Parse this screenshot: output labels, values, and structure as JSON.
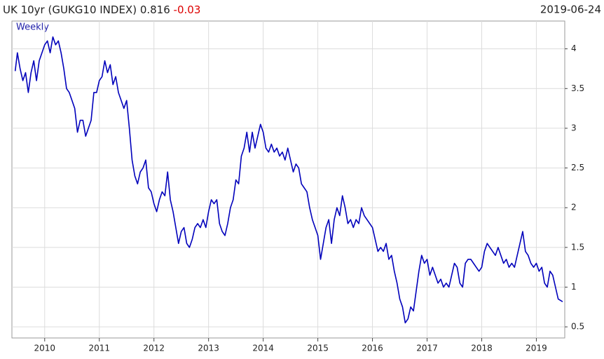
{
  "chart_data": {
    "type": "line",
    "title": "UK 10yr (GUKG10 INDEX) 0.816",
    "change": "-0.03",
    "date": "2019-06-24",
    "annotation": "Weekly",
    "xlim": [
      2009.4,
      2019.52
    ],
    "xticks": [
      2010,
      2011,
      2012,
      2013,
      2014,
      2015,
      2016,
      2017,
      2018,
      2019
    ],
    "ylim": [
      0.36,
      4.35
    ],
    "yticks": [
      0.5,
      1,
      1.5,
      2,
      2.5,
      3,
      3.5,
      4
    ],
    "grid": true,
    "series": [
      {
        "color": "#0000bb",
        "x": [
          2009.46,
          2009.5,
          2009.55,
          2009.6,
          2009.65,
          2009.7,
          2009.75,
          2009.8,
          2009.85,
          2009.9,
          2010.0,
          2010.05,
          2010.1,
          2010.15,
          2010.2,
          2010.25,
          2010.3,
          2010.35,
          2010.4,
          2010.45,
          2010.5,
          2010.55,
          2010.6,
          2010.65,
          2010.7,
          2010.75,
          2010.8,
          2010.85,
          2010.9,
          2010.95,
          2011.0,
          2011.05,
          2011.1,
          2011.15,
          2011.2,
          2011.25,
          2011.3,
          2011.35,
          2011.4,
          2011.45,
          2011.5,
          2011.55,
          2011.6,
          2011.65,
          2011.7,
          2011.75,
          2011.8,
          2011.85,
          2011.9,
          2011.95,
          2012.0,
          2012.05,
          2012.1,
          2012.15,
          2012.2,
          2012.25,
          2012.3,
          2012.35,
          2012.4,
          2012.45,
          2012.5,
          2012.55,
          2012.6,
          2012.65,
          2012.7,
          2012.75,
          2012.8,
          2012.85,
          2012.9,
          2012.95,
          2013.0,
          2013.05,
          2013.1,
          2013.15,
          2013.2,
          2013.25,
          2013.3,
          2013.35,
          2013.4,
          2013.45,
          2013.5,
          2013.55,
          2013.6,
          2013.65,
          2013.7,
          2013.75,
          2013.8,
          2013.85,
          2013.9,
          2013.95,
          2014.0,
          2014.05,
          2014.1,
          2014.15,
          2014.2,
          2014.25,
          2014.3,
          2014.35,
          2014.4,
          2014.45,
          2014.5,
          2014.55,
          2014.6,
          2014.65,
          2014.7,
          2014.75,
          2014.8,
          2014.85,
          2014.9,
          2014.95,
          2015.0,
          2015.05,
          2015.1,
          2015.15,
          2015.2,
          2015.25,
          2015.3,
          2015.35,
          2015.4,
          2015.45,
          2015.5,
          2015.55,
          2015.6,
          2015.65,
          2015.7,
          2015.75,
          2015.8,
          2015.85,
          2015.9,
          2015.95,
          2016.0,
          2016.05,
          2016.1,
          2016.15,
          2016.2,
          2016.25,
          2016.3,
          2016.35,
          2016.4,
          2016.45,
          2016.5,
          2016.55,
          2016.6,
          2016.65,
          2016.7,
          2016.75,
          2016.8,
          2016.85,
          2016.9,
          2016.95,
          2017.0,
          2017.05,
          2017.1,
          2017.15,
          2017.2,
          2017.25,
          2017.3,
          2017.35,
          2017.4,
          2017.45,
          2017.5,
          2017.55,
          2017.6,
          2017.65,
          2017.7,
          2017.75,
          2017.8,
          2017.85,
          2017.9,
          2017.95,
          2018.0,
          2018.05,
          2018.1,
          2018.15,
          2018.2,
          2018.25,
          2018.3,
          2018.35,
          2018.4,
          2018.45,
          2018.5,
          2018.55,
          2018.6,
          2018.65,
          2018.7,
          2018.75,
          2018.8,
          2018.85,
          2018.9,
          2018.95,
          2019.0,
          2019.05,
          2019.1,
          2019.15,
          2019.2,
          2019.25,
          2019.3,
          2019.35,
          2019.4,
          2019.45,
          2019.48
        ],
        "values": [
          3.72,
          3.95,
          3.75,
          3.6,
          3.7,
          3.45,
          3.7,
          3.85,
          3.6,
          3.85,
          4.05,
          4.1,
          3.95,
          4.15,
          4.05,
          4.1,
          3.95,
          3.75,
          3.5,
          3.45,
          3.35,
          3.25,
          2.95,
          3.1,
          3.1,
          2.9,
          3.0,
          3.1,
          3.45,
          3.45,
          3.6,
          3.65,
          3.85,
          3.7,
          3.8,
          3.55,
          3.65,
          3.45,
          3.35,
          3.25,
          3.35,
          3.0,
          2.6,
          2.4,
          2.3,
          2.45,
          2.5,
          2.6,
          2.25,
          2.2,
          2.05,
          1.95,
          2.1,
          2.2,
          2.15,
          2.45,
          2.1,
          1.95,
          1.75,
          1.55,
          1.7,
          1.75,
          1.55,
          1.5,
          1.6,
          1.75,
          1.8,
          1.75,
          1.85,
          1.75,
          1.95,
          2.1,
          2.05,
          2.1,
          1.8,
          1.7,
          1.65,
          1.8,
          2.0,
          2.1,
          2.35,
          2.3,
          2.65,
          2.75,
          2.95,
          2.7,
          2.95,
          2.75,
          2.9,
          3.05,
          2.95,
          2.75,
          2.7,
          2.8,
          2.7,
          2.75,
          2.65,
          2.7,
          2.6,
          2.75,
          2.6,
          2.45,
          2.55,
          2.5,
          2.3,
          2.25,
          2.2,
          2.0,
          1.85,
          1.75,
          1.65,
          1.35,
          1.55,
          1.75,
          1.85,
          1.55,
          1.85,
          2.0,
          1.9,
          2.15,
          2.0,
          1.8,
          1.85,
          1.75,
          1.85,
          1.8,
          2.0,
          1.9,
          1.85,
          1.8,
          1.75,
          1.6,
          1.45,
          1.5,
          1.45,
          1.55,
          1.35,
          1.4,
          1.2,
          1.05,
          0.85,
          0.75,
          0.55,
          0.6,
          0.75,
          0.7,
          0.95,
          1.2,
          1.4,
          1.3,
          1.35,
          1.15,
          1.25,
          1.15,
          1.05,
          1.1,
          1.0,
          1.05,
          1.0,
          1.15,
          1.3,
          1.25,
          1.05,
          1.0,
          1.3,
          1.35,
          1.35,
          1.3,
          1.25,
          1.2,
          1.25,
          1.45,
          1.55,
          1.5,
          1.45,
          1.4,
          1.5,
          1.4,
          1.3,
          1.35,
          1.25,
          1.3,
          1.25,
          1.4,
          1.55,
          1.7,
          1.45,
          1.4,
          1.3,
          1.25,
          1.3,
          1.2,
          1.25,
          1.05,
          1.0,
          1.2,
          1.15,
          1.0,
          0.85,
          0.83,
          0.816
        ]
      }
    ]
  }
}
